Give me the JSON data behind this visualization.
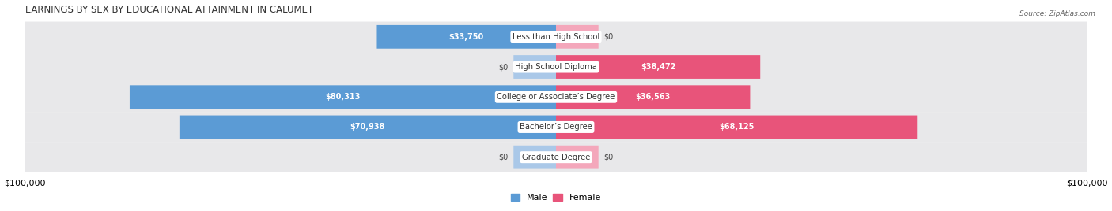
{
  "title": "EARNINGS BY SEX BY EDUCATIONAL ATTAINMENT IN CALUMET",
  "source": "Source: ZipAtlas.com",
  "categories": [
    "Less than High School",
    "High School Diploma",
    "College or Associate’s Degree",
    "Bachelor’s Degree",
    "Graduate Degree"
  ],
  "male_values": [
    33750,
    0,
    80313,
    70938,
    0
  ],
  "female_values": [
    0,
    38472,
    36563,
    68125,
    0
  ],
  "male_color_full": "#5b9bd5",
  "male_color_stub": "#aac8e8",
  "female_color_full": "#e8547a",
  "female_color_stub": "#f4a7bb",
  "row_bg_color": "#e8e8ea",
  "axis_max": 100000,
  "xlabel_left": "$100,000",
  "xlabel_right": "$100,000",
  "legend_male": "Male",
  "legend_female": "Female",
  "title_fontsize": 8.5,
  "tick_fontsize": 8,
  "stub_value": 8000,
  "label_inside_threshold": 15000
}
